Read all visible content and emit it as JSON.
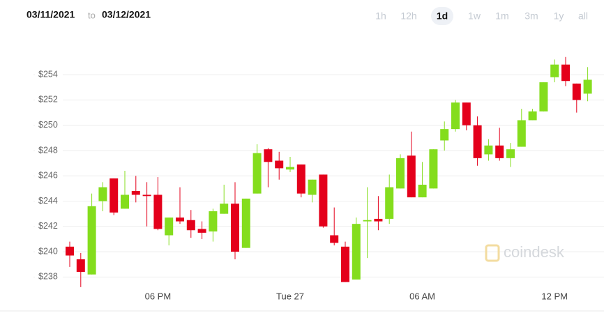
{
  "header": {
    "from": "03/11/2021",
    "separator": "to",
    "to": "03/12/2021",
    "ranges": [
      "1h",
      "12h",
      "1d",
      "1w",
      "1m",
      "3m",
      "1y",
      "all"
    ],
    "active_range": 2
  },
  "watermark": "coindesk",
  "chart_data": {
    "type": "candlestick",
    "categories": [
      null,
      null,
      null,
      null,
      null,
      null,
      null,
      null,
      "06 PM",
      null,
      null,
      null,
      null,
      null,
      null,
      null,
      null,
      null,
      null,
      null,
      "Tue 27",
      null,
      null,
      null,
      null,
      null,
      null,
      null,
      null,
      null,
      null,
      null,
      "06 AM",
      null,
      null,
      null,
      null,
      null,
      null,
      null,
      null,
      null,
      null,
      null,
      "12 PM",
      null,
      null,
      null
    ],
    "open": [
      240.4,
      239.4,
      238.2,
      244.0,
      245.8,
      243.4,
      244.8,
      244.5,
      244.5,
      241.3,
      242.7,
      242.5,
      241.8,
      241.6,
      243.0,
      243.8,
      240.3,
      244.6,
      248.1,
      247.2,
      246.5,
      246.9,
      244.5,
      246.1,
      241.3,
      240.4,
      237.8,
      242.4,
      242.6,
      242.6,
      245.0,
      247.6,
      244.3,
      245.0,
      248.8,
      249.7,
      251.8,
      250.0,
      247.7,
      248.4,
      247.4,
      248.3,
      250.4,
      251.1,
      253.8,
      254.8,
      253.3,
      252.5
    ],
    "high": [
      240.8,
      239.9,
      244.6,
      245.5,
      245.8,
      246.4,
      246.0,
      245.5,
      245.9,
      242.7,
      245.1,
      243.3,
      242.4,
      243.4,
      245.3,
      245.5,
      244.2,
      248.5,
      248.2,
      247.9,
      247.5,
      246.9,
      245.7,
      246.1,
      243.5,
      240.8,
      242.7,
      245.1,
      244.4,
      246.1,
      247.7,
      249.5,
      247.1,
      248.1,
      250.3,
      252.0,
      251.8,
      250.7,
      248.9,
      249.8,
      248.6,
      251.3,
      251.3,
      253.4,
      255.2,
      255.4,
      253.3,
      254.6
    ],
    "low": [
      238.8,
      237.2,
      238.2,
      243.2,
      242.9,
      243.4,
      243.9,
      242.0,
      241.7,
      240.5,
      242.2,
      241.1,
      241.0,
      240.8,
      243.0,
      239.4,
      240.3,
      244.6,
      245.1,
      245.7,
      246.3,
      244.3,
      243.9,
      241.9,
      240.5,
      237.6,
      237.8,
      239.5,
      241.7,
      242.2,
      245.0,
      244.3,
      244.3,
      245.0,
      248.0,
      249.5,
      249.6,
      246.8,
      247.2,
      247.2,
      246.7,
      248.3,
      250.4,
      251.1,
      253.4,
      253.1,
      251.0,
      251.9
    ],
    "close": [
      239.7,
      238.4,
      243.6,
      245.1,
      243.1,
      244.5,
      244.5,
      244.4,
      241.8,
      242.7,
      242.4,
      241.7,
      241.5,
      243.2,
      243.8,
      240.0,
      244.2,
      247.8,
      247.1,
      246.6,
      246.7,
      244.6,
      245.7,
      242.0,
      240.7,
      237.6,
      242.2,
      242.5,
      242.4,
      245.1,
      247.4,
      244.3,
      245.3,
      248.1,
      249.7,
      251.8,
      250.0,
      247.4,
      248.4,
      247.4,
      248.1,
      250.4,
      251.1,
      253.4,
      254.8,
      253.5,
      252.0,
      253.6
    ],
    "up_color": "#84dd1d",
    "down_color": "#e4001b",
    "ylim": [
      236.2,
      256.6
    ],
    "yticks": [
      {
        "value": 238,
        "label": "$238"
      },
      {
        "value": 240,
        "label": "$240"
      },
      {
        "value": 242,
        "label": "$242"
      },
      {
        "value": 244,
        "label": "$244"
      },
      {
        "value": 246,
        "label": "$246"
      },
      {
        "value": 248,
        "label": "$248"
      },
      {
        "value": 250,
        "label": "$250"
      },
      {
        "value": 252,
        "label": "$252"
      },
      {
        "value": 254,
        "label": "$254"
      }
    ],
    "grid": true
  }
}
